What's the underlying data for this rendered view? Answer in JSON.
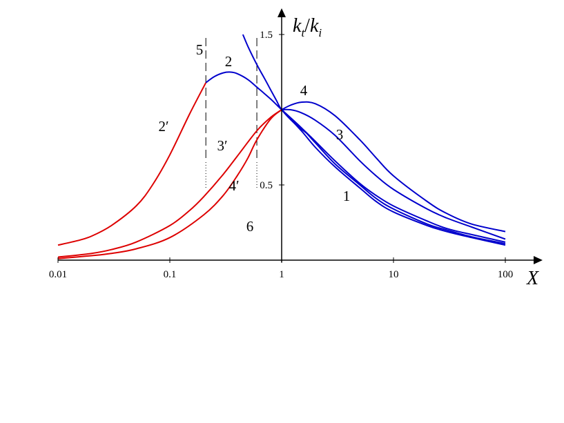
{
  "chart_data": {
    "type": "line",
    "xlabel": "X",
    "ylabel": "k_t / k_i",
    "ylabel_parts": {
      "k1": "k",
      "s1": "t",
      "slash": "/",
      "k2": "k",
      "s2": "i"
    },
    "x_scale": "log",
    "xlim": [
      0.01,
      100
    ],
    "ylim": [
      0,
      1.5
    ],
    "x_ticks": [
      {
        "value": 0.01,
        "label": "0.01"
      },
      {
        "value": 0.1,
        "label": "0.1"
      },
      {
        "value": 1,
        "label": "1"
      },
      {
        "value": 10,
        "label": "10"
      },
      {
        "value": 100,
        "label": "100"
      }
    ],
    "y_ticks": [
      {
        "value": 0.5,
        "label": "0.5"
      },
      {
        "value": 1.5,
        "label": "1.5"
      }
    ],
    "grid": false,
    "legend": "none",
    "series": [
      {
        "name": "1",
        "color": "#0000cc",
        "x": [
          1,
          1.5,
          2,
          3,
          5,
          7,
          10,
          20,
          30,
          50,
          100
        ],
        "y": [
          1.0,
          0.86,
          0.75,
          0.62,
          0.48,
          0.39,
          0.32,
          0.23,
          0.19,
          0.15,
          0.1
        ]
      },
      {
        "name": "1",
        "color": "#0000cc",
        "x": [
          1,
          1.5,
          2,
          3,
          5,
          7,
          10,
          20,
          30,
          50,
          100
        ],
        "y": [
          1.0,
          0.88,
          0.78,
          0.64,
          0.5,
          0.41,
          0.34,
          0.24,
          0.2,
          0.155,
          0.11
        ]
      },
      {
        "name": "2",
        "color": "#0000cc",
        "x": [
          0.21,
          0.25,
          0.3,
          0.35,
          0.4,
          0.5,
          0.6,
          0.8,
          1,
          1.5,
          2,
          3,
          5,
          7,
          10,
          20,
          30,
          50,
          100
        ],
        "y": [
          1.18,
          1.22,
          1.245,
          1.25,
          1.24,
          1.2,
          1.15,
          1.07,
          1.0,
          0.88,
          0.79,
          0.66,
          0.51,
          0.43,
          0.36,
          0.26,
          0.21,
          0.17,
          0.12
        ]
      },
      {
        "name": "2′",
        "color": "#dd0000",
        "x": [
          0.01,
          0.015,
          0.02,
          0.03,
          0.05,
          0.07,
          0.1,
          0.15,
          0.21
        ],
        "y": [
          0.1,
          0.13,
          0.16,
          0.23,
          0.36,
          0.5,
          0.7,
          0.97,
          1.18
        ]
      },
      {
        "name": "3",
        "color": "#0000cc",
        "x": [
          1,
          1.2,
          1.5,
          2,
          3,
          5,
          7,
          10,
          20,
          30,
          50,
          100
        ],
        "y": [
          1.0,
          1.0,
          0.98,
          0.93,
          0.83,
          0.66,
          0.56,
          0.47,
          0.34,
          0.28,
          0.22,
          0.14
        ]
      },
      {
        "name": "3′",
        "color": "#dd0000",
        "x": [
          0.01,
          0.02,
          0.03,
          0.05,
          0.1,
          0.15,
          0.2,
          0.3,
          0.4,
          0.6,
          0.8,
          1
        ],
        "y": [
          0.02,
          0.045,
          0.07,
          0.12,
          0.23,
          0.33,
          0.42,
          0.57,
          0.69,
          0.86,
          0.95,
          1.0
        ]
      },
      {
        "name": "4",
        "color": "#0000cc",
        "x": [
          1,
          1.2,
          1.5,
          2,
          3,
          5,
          7,
          10,
          20,
          30,
          50,
          100
        ],
        "y": [
          1.0,
          1.03,
          1.05,
          1.04,
          0.96,
          0.8,
          0.68,
          0.56,
          0.39,
          0.31,
          0.24,
          0.19
        ]
      },
      {
        "name": "4′",
        "color": "#dd0000",
        "x": [
          0.01,
          0.02,
          0.03,
          0.05,
          0.1,
          0.2,
          0.3,
          0.4,
          0.5,
          0.6,
          0.8,
          1
        ],
        "y": [
          0.01,
          0.03,
          0.045,
          0.075,
          0.15,
          0.3,
          0.43,
          0.56,
          0.68,
          0.8,
          0.94,
          1.0
        ]
      },
      {
        "name": "",
        "color": "#0000cc",
        "x": [
          0.45,
          0.5,
          0.6,
          0.7,
          0.8,
          0.9,
          1,
          1.3,
          1.7
        ],
        "y": [
          1.5,
          1.42,
          1.3,
          1.21,
          1.13,
          1.06,
          1.0,
          0.91,
          0.84
        ]
      }
    ],
    "markers": [
      {
        "label": "5",
        "x": 0.21
      },
      {
        "label": "",
        "x": 0.6
      }
    ],
    "annotations": [
      {
        "text": "6",
        "x": 0.27,
        "y": 0.2
      }
    ]
  }
}
